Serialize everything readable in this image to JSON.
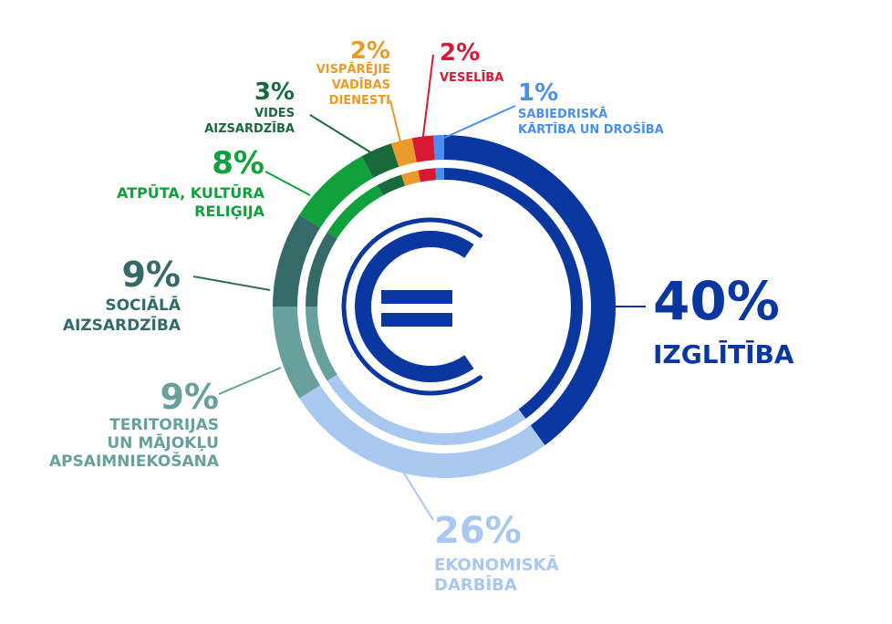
{
  "chart_data": {
    "type": "pie",
    "title": "",
    "slices": [
      {
        "label_lines": [
          "IZGLĪTĪBA"
        ],
        "value": 40,
        "display": "40%",
        "color": "#0a36a0"
      },
      {
        "label_lines": [
          "EKONOMISKĀ",
          "DARBĪBA"
        ],
        "value": 26,
        "display": "26%",
        "color": "#a9c8ef"
      },
      {
        "label_lines": [
          "TERITORIJAS",
          "UN MĀJOKĻU",
          "APSAIMNIEKOŠANA"
        ],
        "value": 9,
        "display": "9%",
        "color": "#67a09c"
      },
      {
        "label_lines": [
          "SOCIĀLĀ",
          "AIZSARDZĪBA"
        ],
        "value": 9,
        "display": "9%",
        "color": "#356a69"
      },
      {
        "label_lines": [
          "ATPŪTA, KULTŪRA",
          "RELIĢIJA"
        ],
        "value": 8,
        "display": "8%",
        "color": "#10a03c"
      },
      {
        "label_lines": [
          "VIDES",
          "AIZSARDZĪBA"
        ],
        "value": 3,
        "display": "3%",
        "color": "#186a3c"
      },
      {
        "label_lines": [
          "VISPĀRĒJIE",
          "VADĪBAS",
          "DIENESTI"
        ],
        "value": 2,
        "display": "2%",
        "color": "#ea9a2a"
      },
      {
        "label_lines": [
          "VESELĪBA"
        ],
        "value": 2,
        "display": "2%",
        "color": "#d81933"
      },
      {
        "label_lines": [
          "SABIEDRISKĀ",
          "KĀRTĪBA UN DROŠĪBA"
        ],
        "value": 1,
        "display": "1%",
        "color": "#4a8ef0"
      }
    ],
    "center_icon": "euro-icon",
    "center_icon_color": "#0a36a0",
    "legend": "none"
  }
}
